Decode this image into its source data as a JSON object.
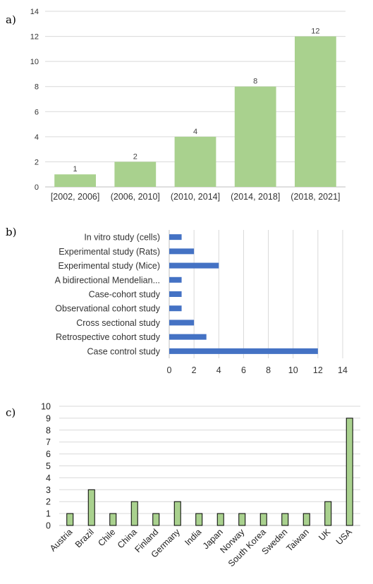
{
  "chart_data": [
    {
      "panel": "a)",
      "type": "bar",
      "orientation": "vertical",
      "categories": [
        "[2002, 2006]",
        "(2006, 2010]",
        "(2010, 2014]",
        "(2014, 2018]",
        "(2018, 2021]"
      ],
      "values": [
        1,
        2,
        4,
        8,
        12
      ],
      "data_labels": [
        "1",
        "2",
        "4",
        "8",
        "12"
      ],
      "ylim": [
        0,
        14
      ],
      "yticks": [
        0,
        2,
        4,
        6,
        8,
        10,
        12,
        14
      ],
      "grid": true,
      "color": "#a9d18e"
    },
    {
      "panel": "b)",
      "type": "bar",
      "orientation": "horizontal",
      "categories": [
        "In vitro study (cells)",
        "Experimental study (Rats)",
        "Experimental study (Mice)",
        "A bidirectional Mendelian...",
        "Case-cohort study",
        "Observational cohort study",
        "Cross sectional study",
        "Retrospective cohort study",
        "Case control study"
      ],
      "values": [
        1,
        2,
        4,
        1,
        1,
        1,
        2,
        3,
        12
      ],
      "xlim": [
        0,
        14
      ],
      "xticks": [
        0,
        2,
        4,
        6,
        8,
        10,
        12,
        14
      ],
      "grid": true,
      "color": "#4472c4"
    },
    {
      "panel": "c)",
      "type": "bar",
      "orientation": "vertical",
      "categories": [
        "Austria",
        "Brazil",
        "Chile",
        "China",
        "Finland",
        "Germany",
        "India",
        "Japan",
        "Norway",
        "South Korea",
        "Sweden",
        "Taiwan",
        "UK",
        "USA"
      ],
      "values": [
        1,
        3,
        1,
        2,
        1,
        2,
        1,
        1,
        1,
        1,
        1,
        1,
        2,
        9
      ],
      "ylim": [
        0,
        10
      ],
      "yticks": [
        0,
        1,
        2,
        3,
        4,
        5,
        6,
        7,
        8,
        9,
        10
      ],
      "grid": true,
      "color": "#a9d18e",
      "edge_color": "#000000"
    }
  ]
}
